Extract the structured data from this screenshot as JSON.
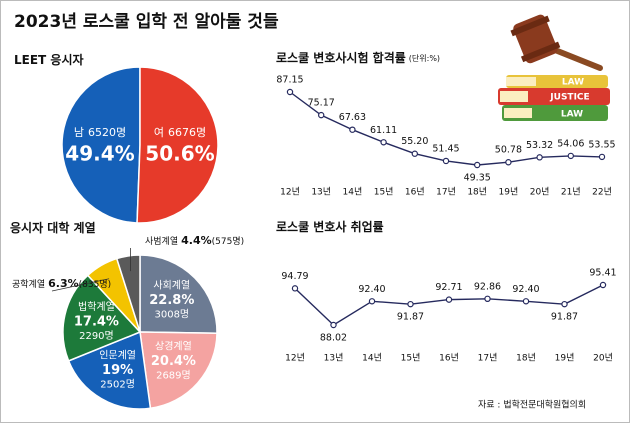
{
  "title": "2023년 로스쿨 입학 전 알아둘 것들",
  "source": "자료 : 법학전문대학원협의회",
  "illustration": {
    "books": [
      "LAW",
      "JUSTICE",
      "LAW"
    ]
  },
  "chart_data": [
    {
      "type": "pie",
      "title": "LEET 응시자",
      "categories": [
        "남",
        "여"
      ],
      "values": [
        49.4,
        50.6
      ],
      "value_labels": [
        "49.4%",
        "50.6%"
      ],
      "count_labels": [
        "6520명",
        "6676명"
      ],
      "colors": [
        "#1560b8",
        "#e63a2a"
      ]
    },
    {
      "type": "line",
      "title": "로스쿨 변호사시험 합격률",
      "subtitle": "(단위:%)",
      "categories": [
        "12년",
        "13년",
        "14년",
        "15년",
        "16년",
        "17년",
        "18년",
        "19년",
        "20년",
        "21년",
        "22년"
      ],
      "values": [
        87.15,
        75.17,
        67.63,
        61.11,
        55.2,
        51.45,
        49.35,
        50.78,
        53.32,
        54.06,
        53.55
      ],
      "value_labels": [
        "87.15",
        "75.17",
        "67.63",
        "61.11",
        "55.20",
        "51.45",
        "49.35",
        "50.78",
        "53.32",
        "54.06",
        "53.55"
      ],
      "color": "#262a5e"
    },
    {
      "type": "pie",
      "title": "응시자 대학 계열",
      "categories": [
        "사회계열",
        "상경계열",
        "인문계열",
        "법학계열",
        "공학계열",
        "사범계열"
      ],
      "values": [
        22.8,
        20.4,
        19,
        17.4,
        6.3,
        4.4
      ],
      "value_labels": [
        "22.8%",
        "20.4%",
        "19%",
        "17.4%",
        "6.3%",
        "4.4%"
      ],
      "count_labels": [
        "3008명",
        "2689명",
        "2502명",
        "2290명",
        "(835명)",
        "(575명)"
      ],
      "colors": [
        "#6c7b93",
        "#f4a3a1",
        "#1560b8",
        "#1d7a3a",
        "#f3c300",
        "#5a5a5a"
      ]
    },
    {
      "type": "line",
      "title": "로스쿨 변호사 취업률",
      "categories": [
        "12년",
        "13년",
        "14년",
        "15년",
        "16년",
        "17년",
        "18년",
        "19년",
        "20년"
      ],
      "values": [
        94.79,
        88.02,
        92.4,
        91.87,
        92.71,
        92.86,
        92.4,
        91.87,
        95.41
      ],
      "value_labels": [
        "94.79",
        "88.02",
        "92.40",
        "91.87",
        "92.71",
        "92.86",
        "92.40",
        "91.87",
        "95.41"
      ],
      "color": "#262a5e"
    }
  ]
}
